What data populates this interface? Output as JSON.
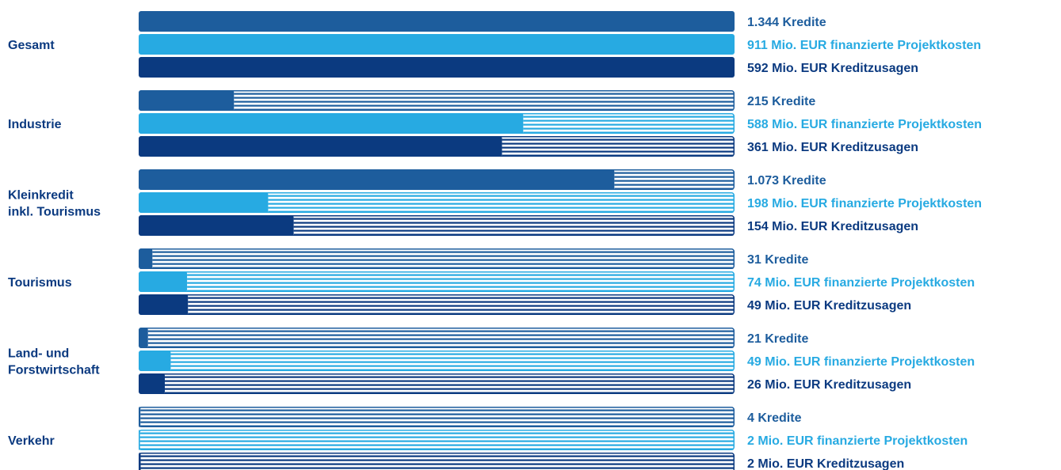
{
  "colors": {
    "kredite": "#1d5d9d",
    "projektkosten": "#27aae2",
    "kreditzusagen": "#0b3a80",
    "category_text": "#0b3a80",
    "background": "#ffffff"
  },
  "chart_data": {
    "type": "bar",
    "orientation": "horizontal",
    "title": "",
    "xlabel": "",
    "ylabel": "",
    "grid": false,
    "legend": "none",
    "categories": [
      [
        "Gesamt"
      ],
      [
        "Industrie"
      ],
      [
        "Kleinkredit",
        "inkl. Tourismus"
      ],
      [
        "Tourismus"
      ],
      [
        "Land- und",
        "Forstwirtschaft"
      ],
      [
        "Verkehr"
      ]
    ],
    "series": [
      {
        "key": "kredite",
        "color": "#1d5d9d",
        "values": [
          1344,
          215,
          1073,
          31,
          21,
          4
        ],
        "labels": [
          "1.344 Kredite",
          "215 Kredite",
          "1.073 Kredite",
          "31 Kredite",
          "21 Kredite",
          "4 Kredite"
        ]
      },
      {
        "key": "projektkosten",
        "color": "#27aae2",
        "values": [
          911,
          588,
          198,
          74,
          49,
          2
        ],
        "labels": [
          "911 Mio. EUR finanzierte Projektkosten",
          "588 Mio. EUR finanzierte Projektkosten",
          "198 Mio. EUR finanzierte Projektkosten",
          "74 Mio. EUR finanzierte Projektkosten",
          "49 Mio. EUR finanzierte Projektkosten",
          "2 Mio. EUR finanzierte Projektkosten"
        ]
      },
      {
        "key": "kreditzusagen",
        "color": "#0b3a80",
        "values": [
          592,
          361,
          154,
          49,
          26,
          2
        ],
        "labels": [
          "592 Mio. EUR Kreditzusagen",
          "361 Mio. EUR Kreditzusagen",
          "154 Mio. EUR Kreditzusagen",
          "49 Mio. EUR Kreditzusagen",
          "26 Mio. EUR Kreditzusagen",
          "2 Mio. EUR Kreditzusagen"
        ]
      }
    ]
  }
}
